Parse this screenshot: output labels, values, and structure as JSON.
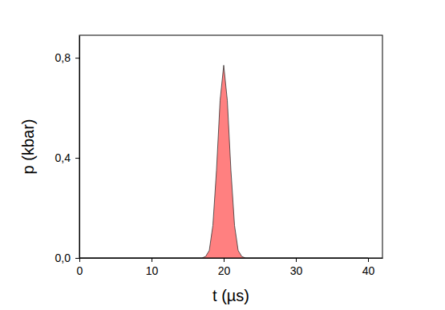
{
  "chart_data": {
    "type": "area",
    "x_label": "t (µs)",
    "y_label": "p (kbar)",
    "x": [
      0,
      16,
      17,
      17.5,
      18,
      18.5,
      19,
      19.5,
      20,
      20.5,
      21,
      21.5,
      22,
      22.5,
      23,
      24,
      40
    ],
    "values": [
      0,
      0,
      0,
      0.006,
      0.03,
      0.13,
      0.35,
      0.63,
      0.77,
      0.63,
      0.35,
      0.13,
      0.03,
      0.006,
      0,
      0,
      0
    ],
    "color": "#ff8080",
    "xlim": [
      0,
      42
    ],
    "xticks": [
      0,
      10,
      20,
      30,
      40
    ],
    "ylim": [
      0,
      0.89
    ],
    "yticks": [
      {
        "value": 0,
        "label": "0,0"
      },
      {
        "value": 0.4,
        "label": "0,4"
      },
      {
        "value": 0.8,
        "label": "0,8"
      }
    ]
  }
}
